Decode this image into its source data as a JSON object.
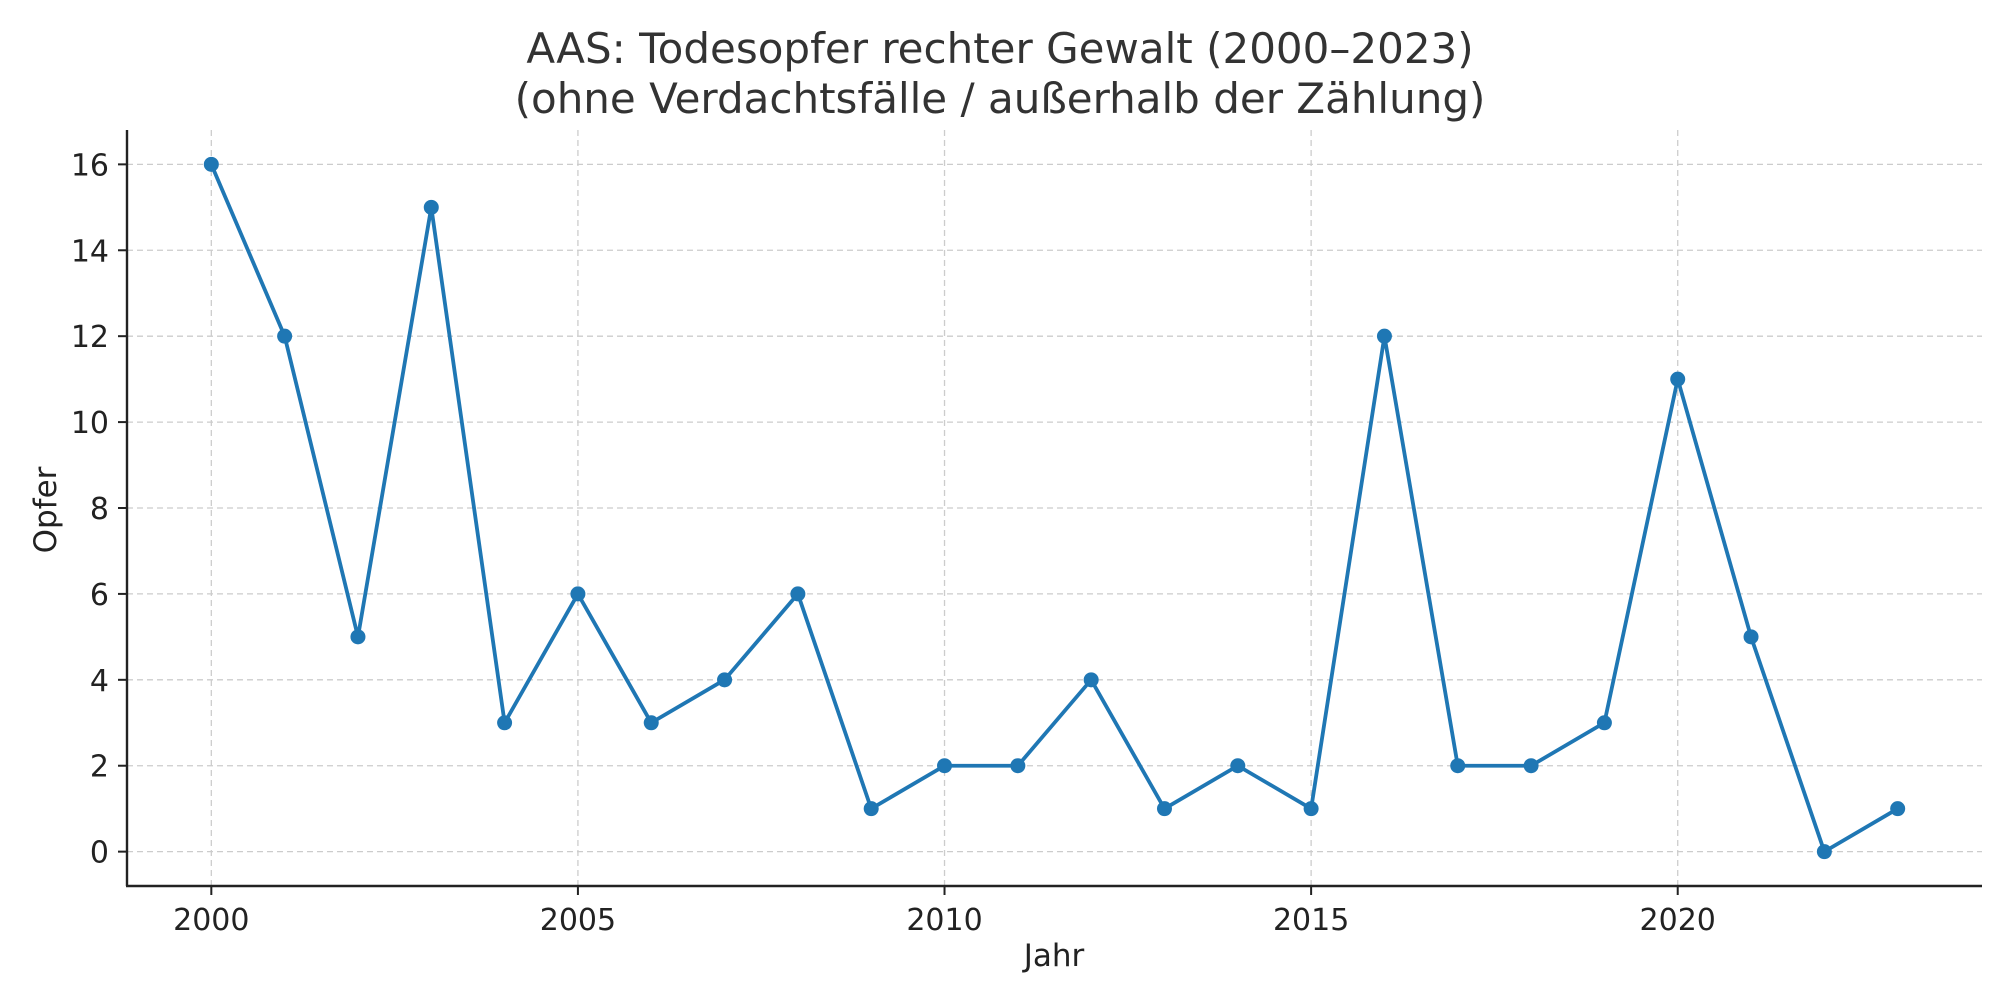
{
  "chart_data": {
    "type": "line",
    "title": "AAS: Todesopfer rechter Gewalt (2000–2023)",
    "subtitle": "(ohne Verdachtsfälle / außerhalb der Zählung)",
    "xlabel": "Jahr",
    "ylabel": "Opfer",
    "xlim": [
      1998.85,
      2024.15
    ],
    "ylim": [
      -0.8,
      16.8
    ],
    "x_ticks": [
      2000,
      2005,
      2010,
      2015,
      2020
    ],
    "y_ticks": [
      0,
      2,
      4,
      6,
      8,
      10,
      12,
      14,
      16
    ],
    "grid": true,
    "line_color": "#1f77b4",
    "series": [
      {
        "x": [
          2000,
          2001,
          2002,
          2003,
          2004,
          2005,
          2006,
          2007,
          2008,
          2009,
          2010,
          2011,
          2012,
          2013,
          2014,
          2015,
          2016,
          2017,
          2018,
          2019,
          2020,
          2021,
          2022,
          2023
        ],
        "values": [
          16,
          12,
          5,
          15,
          3,
          6,
          3,
          4,
          6,
          1,
          2,
          2,
          4,
          1,
          2,
          1,
          12,
          2,
          2,
          3,
          11,
          5,
          0,
          1
        ]
      }
    ]
  }
}
